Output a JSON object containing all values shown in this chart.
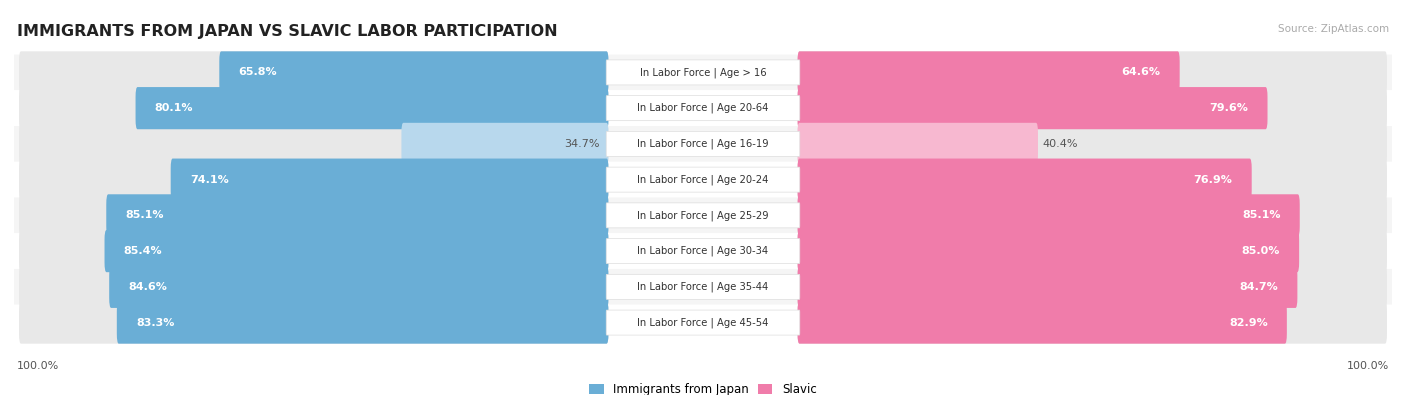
{
  "title": "IMMIGRANTS FROM JAPAN VS SLAVIC LABOR PARTICIPATION",
  "source": "Source: ZipAtlas.com",
  "categories": [
    "In Labor Force | Age > 16",
    "In Labor Force | Age 20-64",
    "In Labor Force | Age 16-19",
    "In Labor Force | Age 20-24",
    "In Labor Force | Age 25-29",
    "In Labor Force | Age 30-34",
    "In Labor Force | Age 35-44",
    "In Labor Force | Age 45-54"
  ],
  "japan_values": [
    65.8,
    80.1,
    34.7,
    74.1,
    85.1,
    85.4,
    84.6,
    83.3
  ],
  "slavic_values": [
    64.6,
    79.6,
    40.4,
    76.9,
    85.1,
    85.0,
    84.7,
    82.9
  ],
  "japan_color": "#6aaed6",
  "japan_color_light": "#b8d8ed",
  "slavic_color": "#f07caa",
  "slavic_color_light": "#f7b8d0",
  "track_color": "#e8e8e8",
  "row_bg_odd": "#f5f5f5",
  "row_bg_even": "#ffffff",
  "label_fontsize": 8.0,
  "cat_fontsize": 7.2,
  "title_fontsize": 11.5,
  "max_value": 100.0,
  "legend_labels": [
    "Immigrants from Japan",
    "Slavic"
  ]
}
